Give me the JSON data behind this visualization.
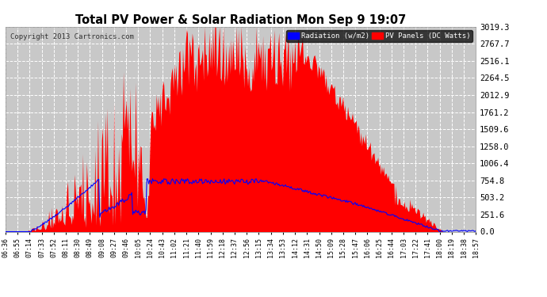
{
  "title": "Total PV Power & Solar Radiation Mon Sep 9 19:07",
  "copyright": "Copyright 2013 Cartronics.com",
  "legend_radiation": "Radiation (w/m2)",
  "legend_pv": "PV Panels (DC Watts)",
  "yticks": [
    0.0,
    251.6,
    503.2,
    754.8,
    1006.4,
    1258.0,
    1509.6,
    1761.2,
    2012.9,
    2264.5,
    2516.1,
    2767.7,
    3019.3
  ],
  "ymax": 3019.3,
  "bg_color": "#ffffff",
  "plot_bg_color": "#c8c8c8",
  "grid_color": "#ffffff",
  "red_fill_color": "#ff0000",
  "blue_line_color": "#0000ff",
  "title_color": "#000000",
  "xtick_labels": [
    "06:36",
    "06:55",
    "07:14",
    "07:33",
    "07:52",
    "08:11",
    "08:30",
    "08:49",
    "09:08",
    "09:27",
    "09:46",
    "10:05",
    "10:24",
    "10:43",
    "11:02",
    "11:21",
    "11:40",
    "11:59",
    "12:18",
    "12:37",
    "12:56",
    "13:15",
    "13:34",
    "13:53",
    "14:12",
    "14:31",
    "14:50",
    "15:09",
    "15:28",
    "15:47",
    "16:06",
    "16:25",
    "16:44",
    "17:03",
    "17:22",
    "17:41",
    "18:00",
    "18:19",
    "18:38",
    "18:57"
  ]
}
